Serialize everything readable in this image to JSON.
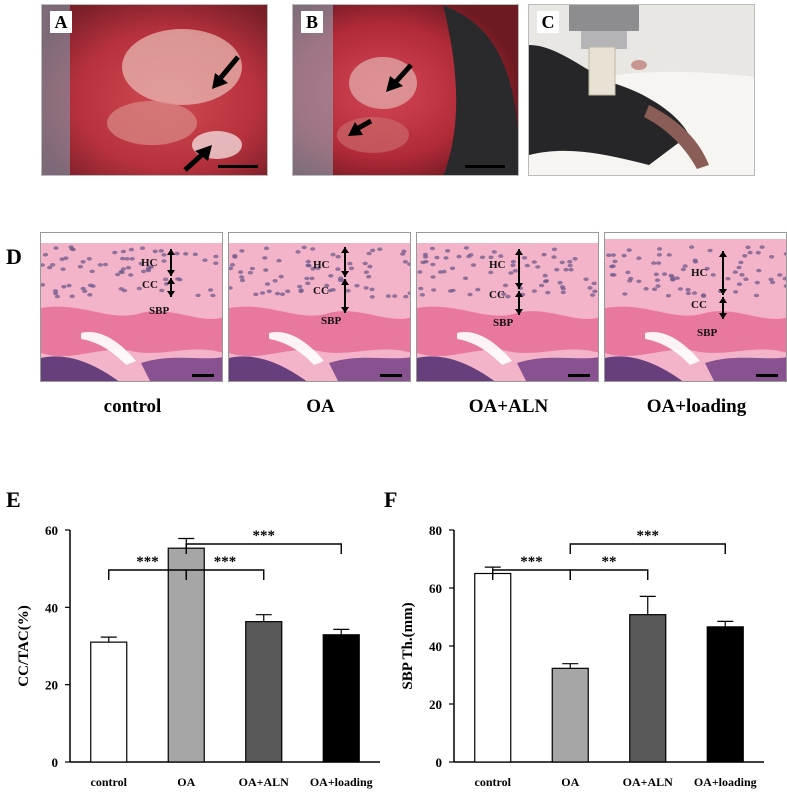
{
  "photos": {
    "A": {
      "letter": "A"
    },
    "B": {
      "letter": "B"
    },
    "C": {
      "letter": "C"
    }
  },
  "histology": {
    "letter": "D",
    "tissue_labels": {
      "hc": "HC",
      "cc": "CC",
      "sbp": "SBP"
    },
    "captions": [
      "control",
      "OA",
      "OA+ALN",
      "OA+loading"
    ]
  },
  "colors": {
    "photo_tissue": "#b8323e",
    "photo_fur": "#2a2a2c",
    "stain_pink": "#f2a9c3",
    "stain_purple": "#5a2a78",
    "bar_control": "#ffffff",
    "bar_oa": "#a6a6a6",
    "bar_aln": "#595959",
    "bar_loading": "#000000"
  },
  "chart_data": [
    {
      "panel": "E",
      "type": "bar",
      "categories": [
        "control",
        "OA",
        "OA+ALN",
        "OA+loading"
      ],
      "values": [
        31,
        55.3,
        36.3,
        32.9
      ],
      "errors": [
        1.3,
        2.5,
        1.8,
        1.4
      ],
      "ylabel": "CC/TAC(%)",
      "ylim": [
        0,
        60
      ],
      "yticks": [
        0,
        20,
        40,
        60
      ],
      "grid": false,
      "significance": [
        {
          "from": 0,
          "to": 1,
          "label": "***"
        },
        {
          "from": 1,
          "to": 2,
          "label": "***"
        },
        {
          "from": 1,
          "to": 3,
          "label": "***"
        }
      ]
    },
    {
      "panel": "F",
      "type": "bar",
      "categories": [
        "control",
        "OA",
        "OA+ALN",
        "OA+loading"
      ],
      "values": [
        65,
        32.3,
        50.8,
        46.6
      ],
      "errors": [
        2.2,
        1.6,
        6.3,
        1.9
      ],
      "ylabel": "SBP Th.(mm)",
      "ylim": [
        0,
        80
      ],
      "yticks": [
        0,
        20,
        40,
        60,
        80
      ],
      "grid": false,
      "significance": [
        {
          "from": 0,
          "to": 1,
          "label": "***"
        },
        {
          "from": 1,
          "to": 2,
          "label": "**"
        },
        {
          "from": 1,
          "to": 3,
          "label": "***"
        }
      ]
    }
  ]
}
